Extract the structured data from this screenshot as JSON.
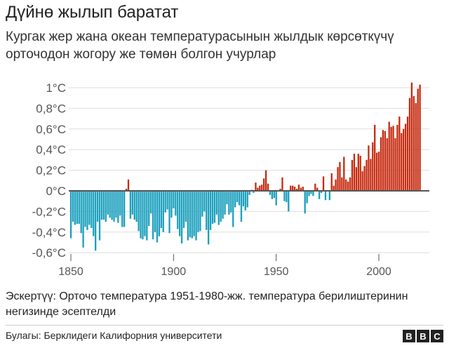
{
  "title": "Дүйнө жылып баратат",
  "subtitle": "Кургак жер жана океан температурасынын жылдык көрсөткүчү орточодон жогору же төмөн болгон учурлар",
  "note": "Эскертүү: Орточо температура 1951-1980-жж. температура берилиштеринин негизинде эсептелди",
  "source": "Булагы: Берклидеги Калифорния университети",
  "logo": "BBC",
  "colors": {
    "positive": "#c52a0f",
    "negative": "#1a9fbd"
  },
  "chart_data": {
    "type": "bar",
    "xlim": [
      1850,
      2020
    ],
    "ylim": [
      -0.6,
      1.0
    ],
    "grid": true,
    "x_ticks": [
      1850,
      1900,
      1950,
      2000
    ],
    "x_tick_labels": [
      "1850",
      "1900",
      "1950",
      "2000"
    ],
    "y_ticks": [
      1.0,
      0.8,
      0.6,
      0.4,
      0.2,
      0,
      -0.2,
      -0.4,
      -0.6
    ],
    "y_tick_labels": [
      "1°C",
      "0,8°C",
      "0,6°C",
      "0,4°C",
      "0,2°C",
      "0°C",
      "-0,2°C",
      "-0,4°C",
      "-0,6°C"
    ],
    "start_year": 1850,
    "values": [
      -0.46,
      -0.3,
      -0.33,
      -0.32,
      -0.32,
      -0.41,
      -0.55,
      -0.35,
      -0.38,
      -0.33,
      -0.36,
      -0.44,
      -0.58,
      -0.3,
      -0.48,
      -0.28,
      -0.28,
      -0.3,
      -0.23,
      -0.26,
      -0.28,
      -0.3,
      -0.26,
      -0.31,
      -0.24,
      -0.35,
      -0.35,
      0.02,
      0.11,
      -0.27,
      -0.23,
      -0.28,
      -0.3,
      -0.39,
      -0.46,
      -0.47,
      -0.44,
      -0.48,
      -0.34,
      -0.22,
      -0.47,
      -0.4,
      -0.5,
      -0.44,
      -0.36,
      -0.4,
      -0.21,
      -0.18,
      -0.41,
      -0.26,
      -0.17,
      -0.24,
      -0.37,
      -0.44,
      -0.51,
      -0.36,
      -0.3,
      -0.48,
      -0.45,
      -0.46,
      -0.44,
      -0.48,
      -0.4,
      -0.39,
      -0.25,
      -0.2,
      -0.38,
      -0.52,
      -0.38,
      -0.32,
      -0.31,
      -0.23,
      -0.33,
      -0.3,
      -0.27,
      -0.23,
      -0.13,
      -0.23,
      -0.21,
      -0.35,
      -0.16,
      -0.11,
      -0.14,
      -0.3,
      -0.15,
      -0.19,
      -0.16,
      -0.04,
      0.01,
      -0.02,
      0.08,
      0.03,
      0.05,
      0.06,
      0.12,
      0.2,
      0.07,
      -0.04,
      -0.08,
      -0.07,
      -0.14,
      0.0,
      0.02,
      0.13,
      -0.1,
      -0.11,
      -0.2,
      0.05,
      0.05,
      0.04,
      0.02,
      0.06,
      0.03,
      0.04,
      -0.22,
      -0.12,
      -0.05,
      -0.03,
      -0.05,
      0.07,
      0.03,
      -0.08,
      -0.02,
      0.14,
      -0.09,
      0.0,
      -0.09,
      0.17,
      0.05,
      0.11,
      0.23,
      0.28,
      0.13,
      0.33,
      0.11,
      0.09,
      0.13,
      0.3,
      0.36,
      0.23,
      0.36,
      0.34,
      0.19,
      0.24,
      0.3,
      0.44,
      0.31,
      0.47,
      0.64,
      0.37,
      0.38,
      0.52,
      0.59,
      0.58,
      0.51,
      0.67,
      0.62,
      0.63,
      0.51,
      0.64,
      0.72,
      0.56,
      0.6,
      0.65,
      0.72,
      0.9,
      1.05,
      0.92,
      0.85,
      0.99,
      1.03
    ]
  }
}
